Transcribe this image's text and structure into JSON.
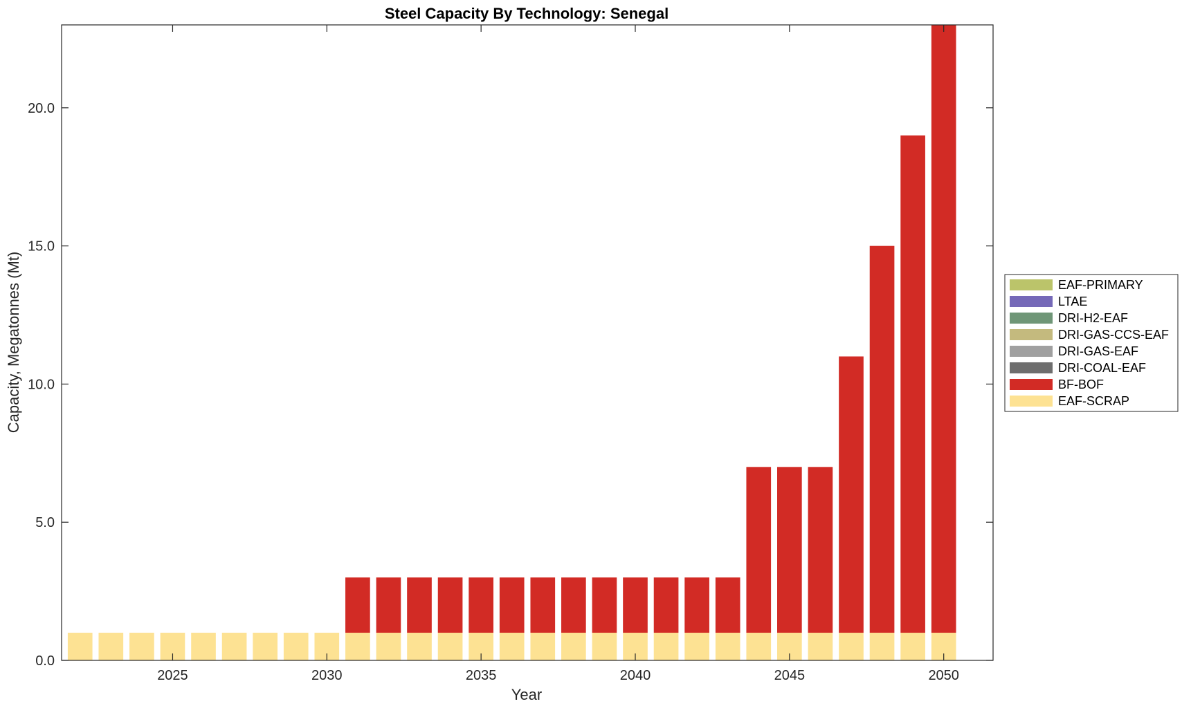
{
  "chart_data": {
    "type": "bar",
    "stacked": true,
    "title": "Steel Capacity By Technology: Senegal",
    "xlabel": "Year",
    "ylabel": "Capacity, Megatonnes (Mt)",
    "xlim": [
      2021.4,
      2051.6
    ],
    "ylim": [
      0,
      23
    ],
    "x": [
      2022,
      2023,
      2024,
      2025,
      2026,
      2027,
      2028,
      2029,
      2030,
      2031,
      2032,
      2033,
      2034,
      2035,
      2036,
      2037,
      2038,
      2039,
      2040,
      2041,
      2042,
      2043,
      2044,
      2045,
      2046,
      2047,
      2048,
      2049,
      2050
    ],
    "x_ticks": [
      2025,
      2030,
      2035,
      2040,
      2045,
      2050
    ],
    "x_tick_labels": [
      "2025",
      "2030",
      "2035",
      "2040",
      "2045",
      "2050"
    ],
    "y_ticks": [
      0,
      5,
      10,
      15,
      20
    ],
    "y_tick_labels": [
      "0.0",
      "5.0",
      "10.0",
      "15.0",
      "20.0"
    ],
    "grid": false,
    "legend_position": "right",
    "series": [
      {
        "name": "EAF-SCRAP",
        "color": "#FDE293",
        "values": [
          1,
          1,
          1,
          1,
          1,
          1,
          1,
          1,
          1,
          1,
          1,
          1,
          1,
          1,
          1,
          1,
          1,
          1,
          1,
          1,
          1,
          1,
          1,
          1,
          1,
          1,
          1,
          1,
          1
        ]
      },
      {
        "name": "BF-BOF",
        "color": "#D22B25",
        "values": [
          0,
          0,
          0,
          0,
          0,
          0,
          0,
          0,
          0,
          2,
          2,
          2,
          2,
          2,
          2,
          2,
          2,
          2,
          2,
          2,
          2,
          2,
          6,
          6,
          6,
          10,
          14,
          18,
          22
        ]
      },
      {
        "name": "DRI-COAL-EAF",
        "color": "#6E6E6E",
        "values": [
          0,
          0,
          0,
          0,
          0,
          0,
          0,
          0,
          0,
          0,
          0,
          0,
          0,
          0,
          0,
          0,
          0,
          0,
          0,
          0,
          0,
          0,
          0,
          0,
          0,
          0,
          0,
          0,
          0
        ]
      },
      {
        "name": "DRI-GAS-EAF",
        "color": "#A0A0A0",
        "values": [
          0,
          0,
          0,
          0,
          0,
          0,
          0,
          0,
          0,
          0,
          0,
          0,
          0,
          0,
          0,
          0,
          0,
          0,
          0,
          0,
          0,
          0,
          0,
          0,
          0,
          0,
          0,
          0,
          0
        ]
      },
      {
        "name": "DRI-GAS-CCS-EAF",
        "color": "#C4BA7E",
        "values": [
          0,
          0,
          0,
          0,
          0,
          0,
          0,
          0,
          0,
          0,
          0,
          0,
          0,
          0,
          0,
          0,
          0,
          0,
          0,
          0,
          0,
          0,
          0,
          0,
          0,
          0,
          0,
          0,
          0
        ]
      },
      {
        "name": "DRI-H2-EAF",
        "color": "#6F9677",
        "values": [
          0,
          0,
          0,
          0,
          0,
          0,
          0,
          0,
          0,
          0,
          0,
          0,
          0,
          0,
          0,
          0,
          0,
          0,
          0,
          0,
          0,
          0,
          0,
          0,
          0,
          0,
          0,
          0,
          0
        ]
      },
      {
        "name": "LTAE",
        "color": "#7569B8",
        "values": [
          0,
          0,
          0,
          0,
          0,
          0,
          0,
          0,
          0,
          0,
          0,
          0,
          0,
          0,
          0,
          0,
          0,
          0,
          0,
          0,
          0,
          0,
          0,
          0,
          0,
          0,
          0,
          0,
          0
        ]
      },
      {
        "name": "EAF-PRIMARY",
        "color": "#BBC46A",
        "values": [
          0,
          0,
          0,
          0,
          0,
          0,
          0,
          0,
          0,
          0,
          0,
          0,
          0,
          0,
          0,
          0,
          0,
          0,
          0,
          0,
          0,
          0,
          0,
          0,
          0,
          0,
          0,
          0,
          0
        ]
      }
    ],
    "legend_entries": [
      "EAF-PRIMARY",
      "LTAE",
      "DRI-H2-EAF",
      "DRI-GAS-CCS-EAF",
      "DRI-GAS-EAF",
      "DRI-COAL-EAF",
      "BF-BOF",
      "EAF-SCRAP"
    ]
  }
}
